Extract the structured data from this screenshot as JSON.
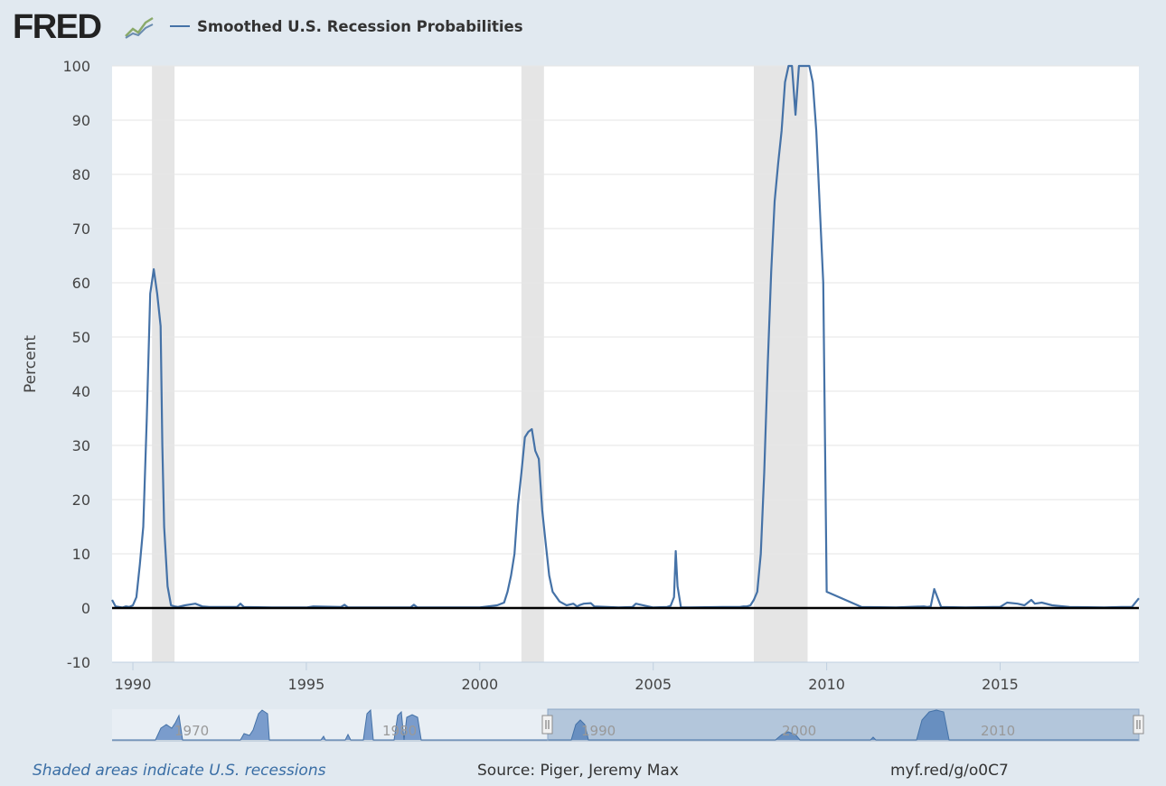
{
  "header": {
    "logo": "FRED",
    "logo_icon": "line-chart-icon"
  },
  "chart_data": {
    "type": "line",
    "title": "",
    "legend": [
      {
        "name": "Smoothed U.S. Recession Probabilities",
        "color": "#4572a7"
      }
    ],
    "legend_placement": "top-left",
    "ylabel": "Percent",
    "xlabel": "",
    "ylim": [
      -10,
      100
    ],
    "yticks": [
      -10,
      0,
      10,
      20,
      30,
      40,
      50,
      60,
      70,
      80,
      90,
      100
    ],
    "xlim": [
      1989.4,
      2019.0
    ],
    "xticks": [
      1990,
      1995,
      2000,
      2005,
      2010,
      2015
    ],
    "grid": true,
    "recessions": [
      [
        1990.55,
        1991.2
      ],
      [
        2001.2,
        2001.85
      ],
      [
        2007.9,
        2009.45
      ]
    ],
    "series": [
      {
        "name": "Smoothed U.S. Recession Probabilities",
        "color": "#4572a7",
        "x": [
          1989.4,
          1989.5,
          1989.6,
          1989.7,
          1989.8,
          1989.9,
          1990.0,
          1990.1,
          1990.2,
          1990.3,
          1990.4,
          1990.5,
          1990.6,
          1990.7,
          1990.8,
          1990.85,
          1990.9,
          1991.0,
          1991.1,
          1991.2,
          1991.3,
          1991.5,
          1991.8,
          1992.0,
          1992.2,
          1993.0,
          1993.1,
          1993.2,
          1994.0,
          1995.0,
          1995.2,
          1996.0,
          1996.1,
          1996.2,
          1998.0,
          1998.1,
          1998.2,
          2000.0,
          2000.5,
          2000.7,
          2000.8,
          2000.9,
          2001.0,
          2001.1,
          2001.2,
          2001.3,
          2001.4,
          2001.5,
          2001.6,
          2001.7,
          2001.8,
          2001.9,
          2002.0,
          2002.1,
          2002.3,
          2002.5,
          2002.7,
          2002.8,
          2002.9,
          2003.0,
          2003.2,
          2003.3,
          2004.0,
          2004.4,
          2004.5,
          2005.0,
          2005.4,
          2005.5,
          2005.6,
          2005.65,
          2005.7,
          2005.8,
          2006.0,
          2007.0,
          2007.5,
          2007.6,
          2007.7,
          2007.8,
          2007.9,
          2008.0,
          2008.1,
          2008.2,
          2008.3,
          2008.4,
          2008.5,
          2008.6,
          2008.7,
          2008.8,
          2008.9,
          2009.0,
          2009.1,
          2009.2,
          2009.3,
          2009.4,
          2009.5,
          2009.6,
          2009.7,
          2009.9,
          2010.0,
          2011.0,
          2012.0,
          2012.8,
          2012.9,
          2013.0,
          2013.1,
          2013.3,
          2014.0,
          2014.8,
          2015.0,
          2015.2,
          2015.5,
          2015.7,
          2015.8,
          2015.9,
          2016.0,
          2016.2,
          2016.5,
          2017.0,
          2018.0,
          2018.5,
          2018.8,
          2019.0
        ],
        "y": [
          1.5,
          0.3,
          0.2,
          0.1,
          0.3,
          0.2,
          0.5,
          2,
          8,
          15,
          35,
          58,
          62.5,
          58,
          52,
          30,
          15,
          4,
          0.5,
          0.3,
          0.2,
          0.5,
          0.8,
          0.3,
          0.2,
          0.2,
          0.8,
          0.2,
          0.1,
          0.1,
          0.3,
          0.2,
          0.6,
          0.1,
          0.1,
          0.6,
          0.1,
          0.1,
          0.5,
          1,
          3,
          6,
          10,
          19,
          25,
          31.5,
          32.5,
          33,
          29,
          27.5,
          18,
          12,
          6,
          3,
          1.2,
          0.5,
          0.8,
          0.3,
          0.6,
          0.8,
          0.9,
          0.3,
          0.1,
          0.2,
          0.8,
          0.1,
          0.2,
          0.4,
          2,
          10.5,
          4,
          0.1,
          0.1,
          0.2,
          0.2,
          0.3,
          0.3,
          0.5,
          1.5,
          3,
          10,
          25,
          45,
          62,
          75,
          82,
          88,
          97,
          100,
          100,
          91,
          100,
          100,
          100,
          100,
          97,
          88,
          60,
          3,
          0.2,
          0.1,
          0.3,
          0.2,
          0.3,
          3.5,
          0.2,
          0.1,
          0.2,
          0.2,
          1,
          0.8,
          0.5,
          1,
          1.5,
          0.8,
          1,
          0.5,
          0.2,
          0.1,
          0.2,
          0.2,
          1.8
        ]
      }
    ],
    "navigator": {
      "tick_labels": [
        "1970",
        "1980",
        "1990",
        "2000",
        "2010"
      ],
      "handle_icon": "grip-handle-icon"
    }
  },
  "footer": {
    "note": "Shaded areas indicate U.S. recessions",
    "source": "Source: Piger, Jeremy Max",
    "url": "myf.red/g/o0C7"
  }
}
